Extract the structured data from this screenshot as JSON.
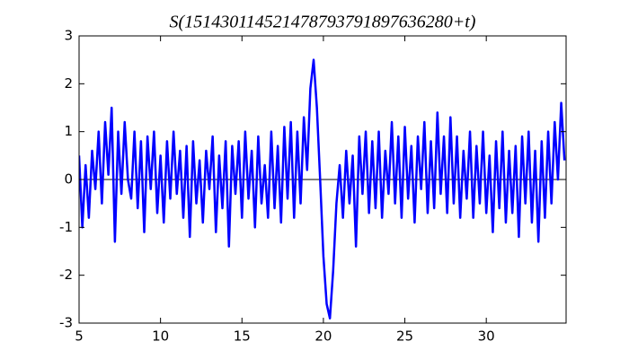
{
  "chart_data": {
    "type": "line",
    "title": "S(151430114521478793791897636280+t)",
    "x": [
      5.0,
      5.2,
      5.4,
      5.6,
      5.8,
      6.0,
      6.2,
      6.4,
      6.6,
      6.8,
      7.0,
      7.2,
      7.4,
      7.6,
      7.8,
      8.0,
      8.2,
      8.4,
      8.6,
      8.8,
      9.0,
      9.2,
      9.4,
      9.6,
      9.8,
      10.0,
      10.2,
      10.4,
      10.6,
      10.8,
      11.0,
      11.2,
      11.4,
      11.6,
      11.8,
      12.0,
      12.2,
      12.4,
      12.6,
      12.8,
      13.0,
      13.2,
      13.4,
      13.6,
      13.8,
      14.0,
      14.2,
      14.4,
      14.6,
      14.8,
      15.0,
      15.2,
      15.4,
      15.6,
      15.8,
      16.0,
      16.2,
      16.4,
      16.6,
      16.8,
      17.0,
      17.2,
      17.4,
      17.6,
      17.8,
      18.0,
      18.2,
      18.4,
      18.6,
      18.8,
      19.0,
      19.2,
      19.4,
      19.6,
      19.8,
      20.0,
      20.2,
      20.4,
      20.6,
      20.8,
      21.0,
      21.2,
      21.4,
      21.6,
      21.8,
      22.0,
      22.2,
      22.4,
      22.6,
      22.8,
      23.0,
      23.2,
      23.4,
      23.6,
      23.8,
      24.0,
      24.2,
      24.4,
      24.6,
      24.8,
      25.0,
      25.2,
      25.4,
      25.6,
      25.8,
      26.0,
      26.2,
      26.4,
      26.6,
      26.8,
      27.0,
      27.2,
      27.4,
      27.6,
      27.8,
      28.0,
      28.2,
      28.4,
      28.6,
      28.8,
      29.0,
      29.2,
      29.4,
      29.6,
      29.8,
      30.0,
      30.2,
      30.4,
      30.6,
      30.8,
      31.0,
      31.2,
      31.4,
      31.6,
      31.8,
      32.0,
      32.2,
      32.4,
      32.6,
      32.8,
      33.0,
      33.2,
      33.4,
      33.6,
      33.8,
      34.0,
      34.2,
      34.4,
      34.6,
      34.8
    ],
    "series": [
      {
        "color": "#0000ff",
        "values": [
          0.5,
          -1.0,
          0.3,
          -0.8,
          0.6,
          -0.2,
          1.0,
          -0.5,
          1.2,
          0.1,
          1.5,
          -1.3,
          1.0,
          -0.3,
          1.2,
          0.0,
          -0.4,
          1.0,
          -0.6,
          0.8,
          -1.1,
          0.9,
          -0.2,
          1.0,
          -0.7,
          0.5,
          -0.9,
          0.8,
          -0.4,
          1.0,
          -0.3,
          0.6,
          -0.8,
          0.7,
          -1.2,
          0.8,
          -0.5,
          0.4,
          -0.9,
          0.6,
          -0.2,
          0.9,
          -1.1,
          0.5,
          -0.6,
          0.8,
          -1.4,
          0.7,
          -0.3,
          0.8,
          -0.8,
          1.0,
          -0.4,
          0.6,
          -1.0,
          0.9,
          -0.5,
          0.3,
          -0.8,
          1.0,
          -0.6,
          0.7,
          -0.9,
          1.1,
          -0.4,
          1.2,
          -0.8,
          1.0,
          -0.5,
          1.3,
          0.2,
          1.9,
          2.5,
          1.5,
          0.0,
          -1.6,
          -2.6,
          -2.9,
          -1.9,
          -0.5,
          0.3,
          -0.8,
          0.6,
          -0.5,
          0.5,
          -1.4,
          0.9,
          -0.3,
          1.0,
          -0.7,
          0.8,
          -0.6,
          1.0,
          -0.8,
          0.6,
          -0.3,
          1.2,
          -0.5,
          0.9,
          -0.8,
          1.1,
          -0.4,
          0.7,
          -0.9,
          0.9,
          -0.2,
          1.2,
          -0.7,
          0.8,
          -0.6,
          1.4,
          -0.3,
          0.9,
          -0.7,
          1.3,
          -0.5,
          0.9,
          -0.8,
          0.6,
          -0.4,
          1.0,
          -0.8,
          0.7,
          -0.5,
          1.0,
          -0.7,
          0.5,
          -1.1,
          0.8,
          -0.6,
          1.0,
          -0.9,
          0.6,
          -0.7,
          0.7,
          -1.2,
          0.9,
          -0.5,
          1.0,
          -0.9,
          0.6,
          -1.3,
          0.8,
          -0.8,
          1.0,
          -0.5,
          1.2,
          0.0,
          1.6,
          0.4
        ]
      }
    ],
    "hline": 0,
    "xlim": [
      5,
      34.9
    ],
    "ylim": [
      -3,
      3
    ],
    "xticks": [
      5,
      10,
      15,
      20,
      25,
      30
    ],
    "yticks": [
      -3,
      -2,
      -1,
      0,
      1,
      2,
      3
    ],
    "grid": false
  }
}
